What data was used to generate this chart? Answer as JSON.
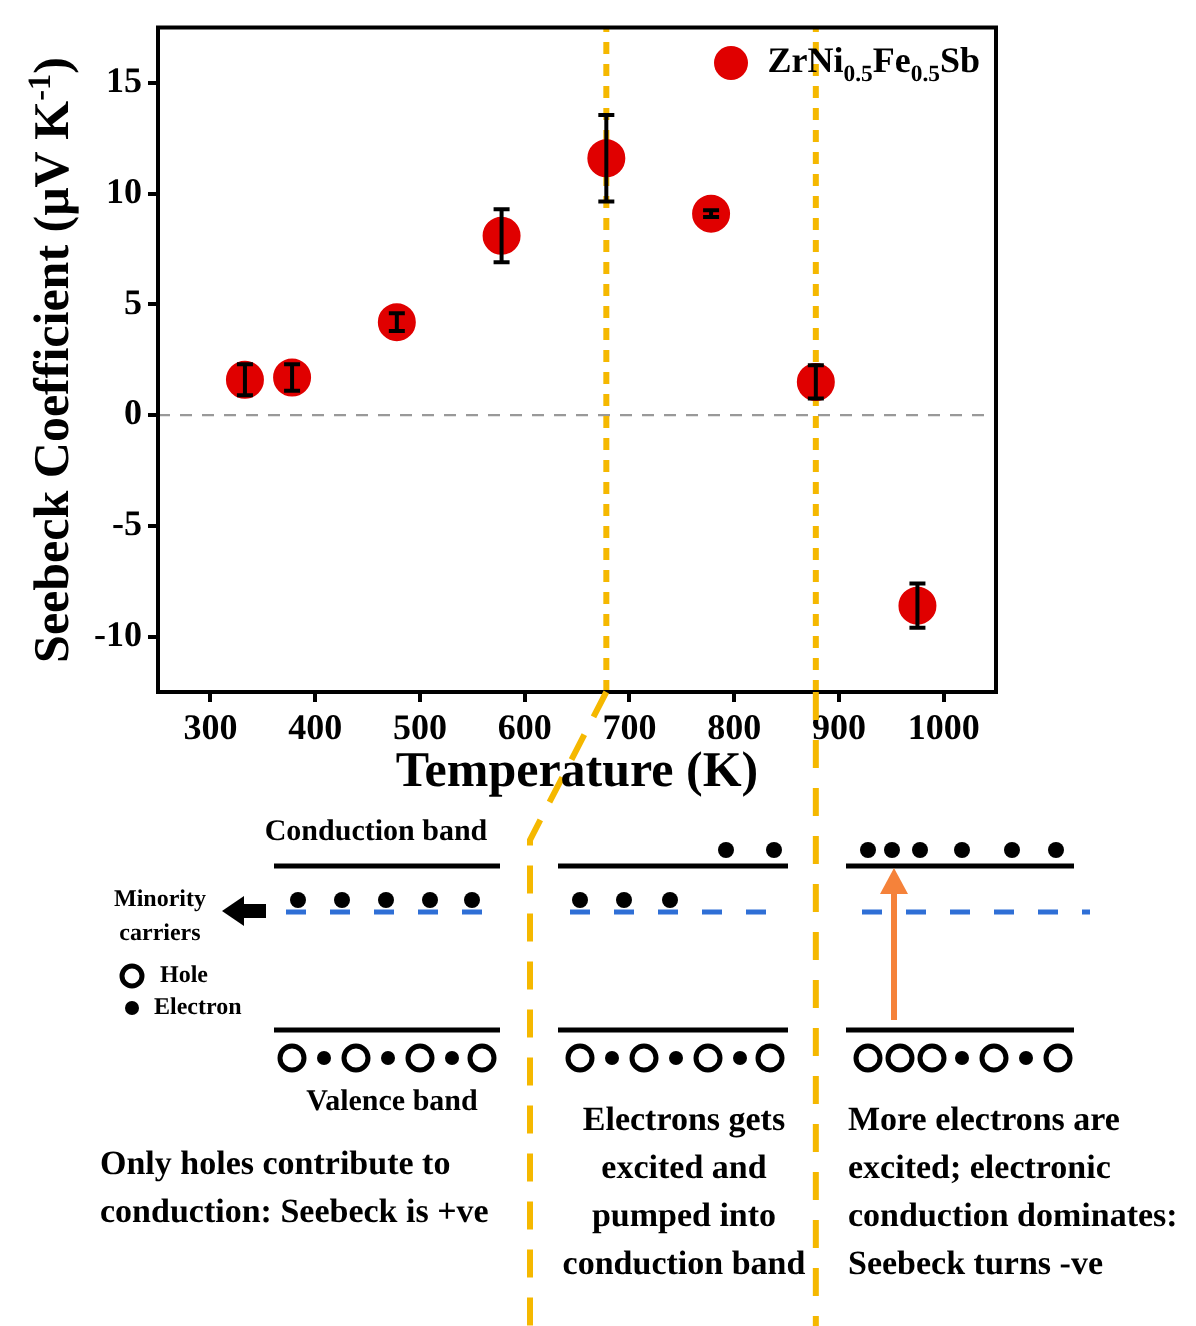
{
  "chart_data": {
    "type": "scatter",
    "xlabel": "Temperature (K)",
    "ylabel": "Seebeck Coefficient (μV K$^{-1}$)",
    "x": [
      333,
      378,
      478,
      578,
      678,
      778,
      878,
      975
    ],
    "series": [
      {
        "name": "ZrNi$_{0.5}$Fe$_{0.5}$Sb",
        "color": "#e00000",
        "values": [
          1.6,
          1.7,
          4.2,
          8.1,
          11.6,
          9.1,
          1.5,
          -8.6
        ],
        "errors": [
          0.7,
          0.6,
          0.4,
          1.2,
          1.95,
          0.15,
          0.75,
          1.0
        ]
      }
    ],
    "xlim": [
      250,
      1050
    ],
    "xticks": [
      300,
      400,
      500,
      600,
      700,
      800,
      900,
      1000
    ],
    "ylim": [
      -12.5,
      17.5
    ],
    "yticks": [
      -10,
      -5,
      0,
      5,
      10,
      15
    ],
    "ref_lines": [
      {
        "axis": "y",
        "value": 0,
        "color": "#999999",
        "line_style": "dashed"
      },
      {
        "axis": "x",
        "value": 678,
        "color": "#f5b800",
        "line_style": "dashed"
      },
      {
        "axis": "x",
        "value": 878,
        "color": "#f5b800",
        "line_style": "dashed"
      }
    ],
    "legend": "top right",
    "marker": "circle",
    "annotations": [
      "Conduction band",
      "Minority carriers",
      "Hole",
      "Electron",
      "Valence band",
      "Only holes contribute to conduction: Seebeck is +ve",
      "Electrons gets excited and pumped into conduction band",
      "More electrons are excited; electronic conduction dominates: Seebeck turns -ve"
    ]
  }
}
